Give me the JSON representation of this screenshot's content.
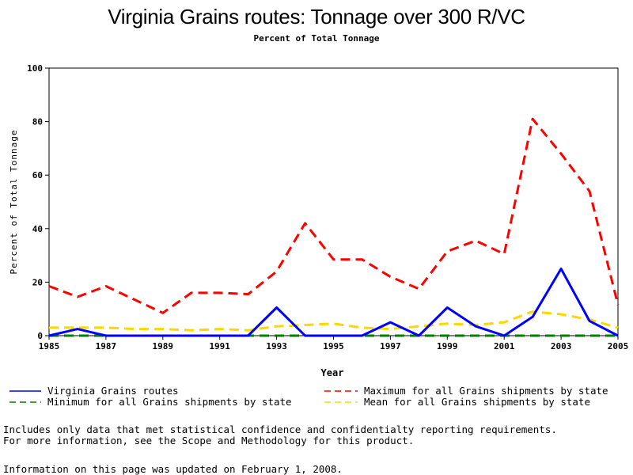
{
  "chart_data": {
    "type": "line",
    "title": "Virginia Grains routes: Tonnage over 300 R/VC",
    "subtitle": "Percent of Total Tonnage",
    "xlabel": "Year",
    "ylabel": "Percent of Total Tonnage",
    "xlim": [
      1985,
      2005
    ],
    "ylim": [
      0,
      100
    ],
    "x_ticks": [
      1985,
      1987,
      1989,
      1991,
      1993,
      1995,
      1997,
      1999,
      2001,
      2003,
      2005
    ],
    "y_ticks": [
      0,
      20,
      40,
      60,
      80,
      100
    ],
    "x": [
      1985,
      1986,
      1987,
      1988,
      1989,
      1990,
      1991,
      1992,
      1993,
      1994,
      1995,
      1996,
      1997,
      1998,
      1999,
      2000,
      2001,
      2002,
      2003,
      2004,
      2005
    ],
    "series": [
      {
        "name": "Virginia Grains routes",
        "color": "#0000ff",
        "style": "solid",
        "values": [
          0,
          2.5,
          0,
          0,
          0,
          0,
          0,
          0,
          10.5,
          0,
          0,
          0,
          5,
          0,
          10.5,
          3.5,
          0,
          7,
          25,
          5.5,
          0
        ]
      },
      {
        "name": "Maximum for all Grains shipments by state",
        "color": "#ff0000",
        "style": "dashed",
        "values": [
          18.5,
          14.5,
          18.5,
          13.5,
          8.5,
          16,
          16,
          15.5,
          24,
          42,
          28.5,
          28.5,
          22,
          17.5,
          31.5,
          35.5,
          30.5,
          81,
          68,
          54,
          11.5
        ]
      },
      {
        "name": "Minimum for all Grains shipments by state",
        "color": "#008000",
        "style": "dashed",
        "values": [
          0,
          0,
          0,
          0,
          0,
          0,
          0,
          0,
          0,
          0,
          0,
          0,
          0,
          0,
          0,
          0,
          0,
          0,
          0,
          0,
          0
        ]
      },
      {
        "name": "Mean for all Grains shipments by state",
        "color": "#ffd700",
        "style": "dashed",
        "values": [
          3,
          3,
          3,
          2.5,
          2.5,
          2,
          2.5,
          2,
          3.5,
          4,
          4.5,
          3,
          2.5,
          3.5,
          4.5,
          4,
          5,
          9,
          8,
          6,
          3
        ]
      }
    ],
    "legend_placement": "bottom"
  },
  "notes": {
    "line1": "Includes only data that met statistical confidence and confidentialty reporting requirements.",
    "line2": "For more information, see the Scope and Methodology for this product.",
    "updated": "Information on this page was updated on February 1, 2008."
  }
}
